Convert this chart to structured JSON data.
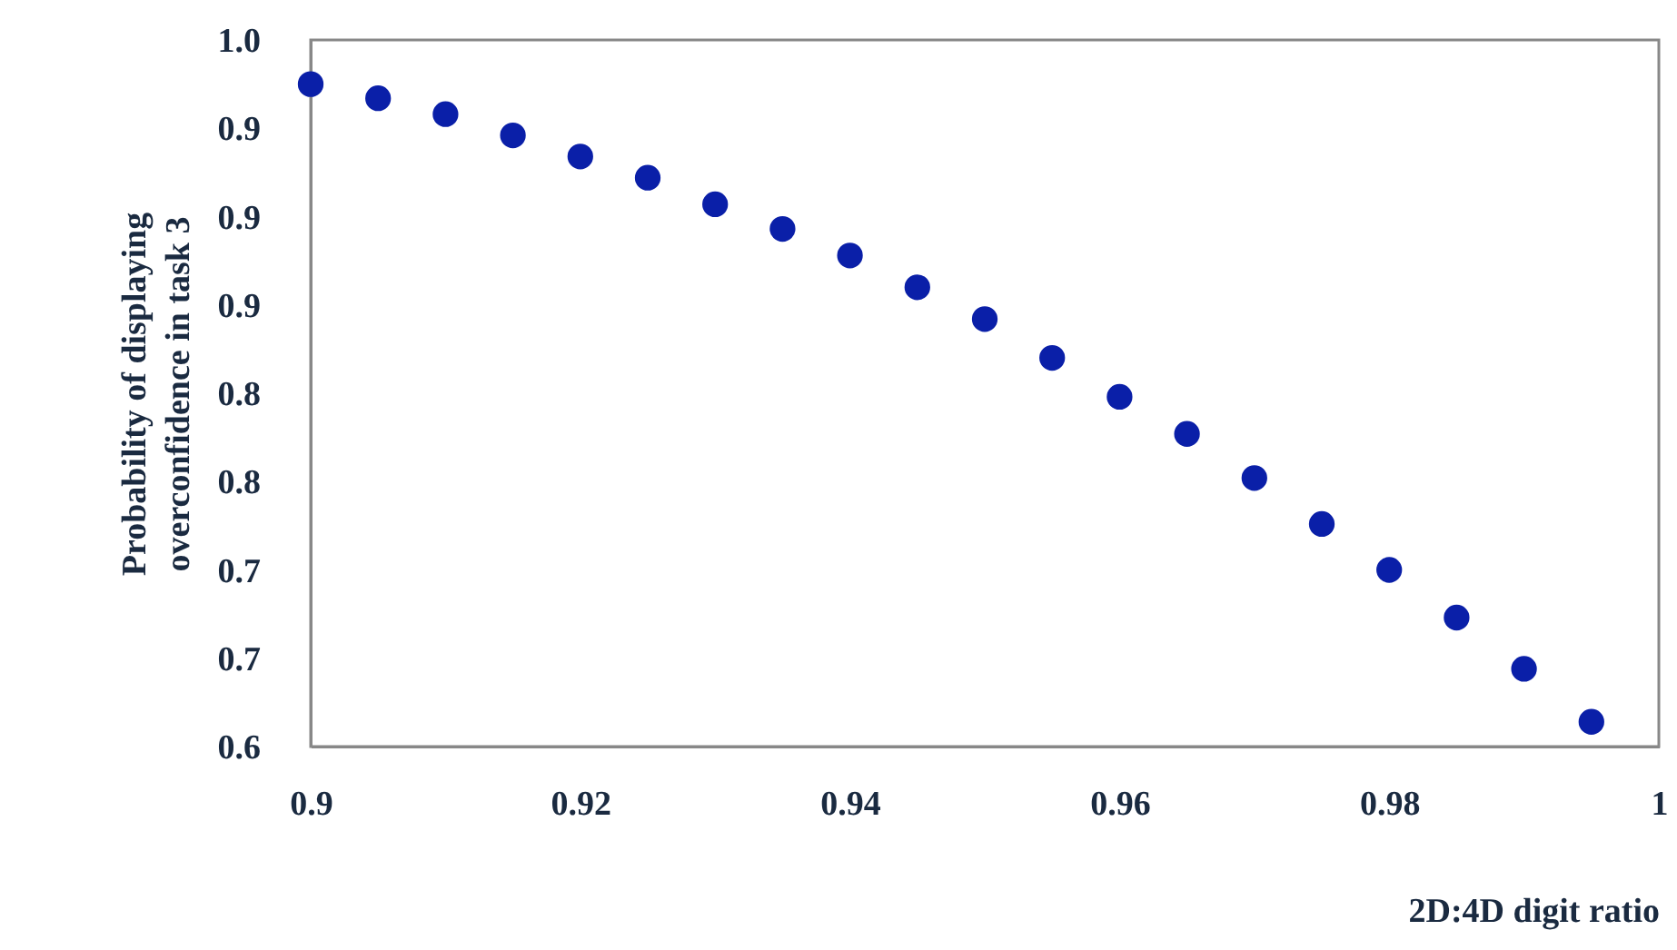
{
  "chart_data": {
    "type": "scatter",
    "xlabel": "2D:4D digit ratio",
    "ylabel": "Probability of displaying\noverconfidence in task 3",
    "x": [
      0.9,
      0.905,
      0.91,
      0.915,
      0.92,
      0.925,
      0.93,
      0.935,
      0.94,
      0.945,
      0.95,
      0.955,
      0.96,
      0.965,
      0.97,
      0.975,
      0.98,
      0.985,
      0.99,
      0.995
    ],
    "series": [
      {
        "color": "#0a1fa8",
        "values": [
          0.975,
          0.967,
          0.958,
          0.946,
          0.934,
          0.922,
          0.907,
          0.893,
          0.878,
          0.86,
          0.842,
          0.82,
          0.798,
          0.777,
          0.752,
          0.726,
          0.7,
          0.673,
          0.644,
          0.614
        ]
      }
    ],
    "xlim": [
      0.9,
      1
    ],
    "xticks": [
      {
        "value": 0.9,
        "label": "0.9"
      },
      0.92,
      0.94,
      0.96,
      0.98,
      {
        "value": 1,
        "label": "1"
      }
    ],
    "ylim": [
      0.6,
      1
    ],
    "yticks": [
      {
        "value": 0.6,
        "label": "0.6"
      },
      {
        "value": 0.65,
        "label": "0.7"
      },
      {
        "value": 0.7,
        "label": "0.7"
      },
      {
        "value": 0.75,
        "label": "0.8"
      },
      {
        "value": 0.8,
        "label": "0.8"
      },
      {
        "value": 0.85,
        "label": "0.9"
      },
      {
        "value": 0.9,
        "label": "0.9"
      },
      {
        "value": 0.95,
        "label": "0.9"
      },
      {
        "value": 1,
        "label": "1.0"
      }
    ],
    "grid": false,
    "marker": "circle"
  }
}
